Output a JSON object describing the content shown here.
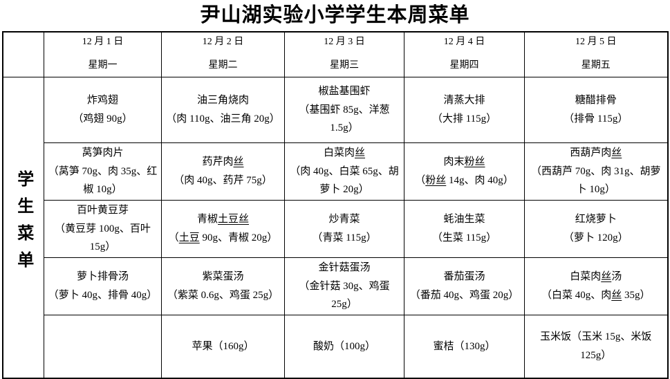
{
  "title": "尹山湖实验小学学生本周菜单",
  "side_label": "学生菜单",
  "underline_words": [
    "土豆丝",
    "土豆",
    "粉丝",
    "丝"
  ],
  "columns": [
    {
      "date": "12 月 1 日",
      "weekday": "星期一"
    },
    {
      "date": "12 月 2 日",
      "weekday": "星期二"
    },
    {
      "date": "12 月 3 日",
      "weekday": "星期三"
    },
    {
      "date": "12 月 4 日",
      "weekday": "星期四"
    },
    {
      "date": "12 月 5 日",
      "weekday": "星期五"
    }
  ],
  "rows": [
    {
      "cells": [
        {
          "name": "炸鸡翅",
          "detail": "（鸡翅 90g）"
        },
        {
          "name": "油三角烧肉",
          "detail": "（肉 110g、油三角 20g）"
        },
        {
          "name": "椒盐基围虾",
          "detail": "（基围虾 85g、洋葱 1.5g）"
        },
        {
          "name": "清蒸大排",
          "detail": "（大排 115g）"
        },
        {
          "name": "糖醋排骨",
          "detail": "（排骨 115g）"
        }
      ]
    },
    {
      "cells": [
        {
          "name": "莴笋肉片",
          "detail": "（莴笋 70g、肉 35g、红椒 10g）"
        },
        {
          "name": "药芹肉丝",
          "detail": "（肉 40g、药芹 75g）"
        },
        {
          "name": "白菜肉丝",
          "detail": "（肉 40g、白菜 65g、胡萝卜 20g）"
        },
        {
          "name": "肉末粉丝",
          "detail": "（粉丝 14g、肉 40g）"
        },
        {
          "name": "西葫芦肉丝",
          "detail": "（西葫芦 70g、肉 31g、胡萝卜 10g）"
        }
      ]
    },
    {
      "cells": [
        {
          "name": "百叶黄豆芽",
          "detail": "（黄豆芽 100g、百叶 15g）"
        },
        {
          "name": "青椒土豆丝",
          "detail": "（土豆 90g、青椒 20g）"
        },
        {
          "name": "炒青菜",
          "detail": "（青菜 115g）"
        },
        {
          "name": "蚝油生菜",
          "detail": "（生菜 115g）"
        },
        {
          "name": "红烧萝卜",
          "detail": "（萝卜 120g）"
        }
      ]
    },
    {
      "cells": [
        {
          "name": "萝卜排骨汤",
          "detail": "（萝卜 40g、排骨 40g）"
        },
        {
          "name": "紫菜蛋汤",
          "detail": "（紫菜 0.6g、鸡蛋 25g）"
        },
        {
          "name": "金针菇蛋汤",
          "detail": "（金针菇 30g、鸡蛋 25g）"
        },
        {
          "name": "番茄蛋汤",
          "detail": "（番茄 40g、鸡蛋 20g）"
        },
        {
          "name": "白菜肉丝汤",
          "detail": "（白菜 40g、肉丝 35g）"
        }
      ]
    },
    {
      "cells": [
        {
          "name": "",
          "detail": ""
        },
        {
          "name": "苹果（160g）",
          "detail": ""
        },
        {
          "name": "酸奶（100g）",
          "detail": ""
        },
        {
          "name": "蜜桔（130g）",
          "detail": ""
        },
        {
          "name": "玉米饭（玉米 15g、米饭 125g）",
          "detail": ""
        }
      ]
    }
  ]
}
